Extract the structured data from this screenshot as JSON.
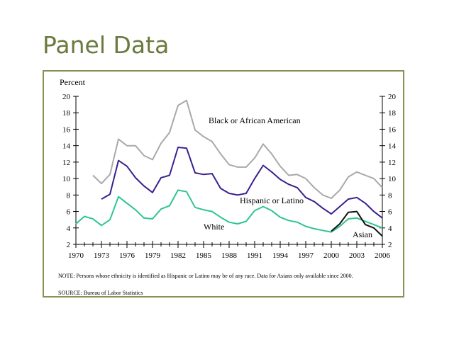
{
  "slide": {
    "title": "Panel Data"
  },
  "chart_data": {
    "type": "line",
    "ylabel": "Percent",
    "xlabel": "",
    "ylim": [
      2,
      20
    ],
    "xlim": [
      1970,
      2006
    ],
    "yticks": [
      2,
      4,
      6,
      8,
      10,
      12,
      14,
      16,
      18,
      20
    ],
    "xticks": [
      1970,
      1973,
      1976,
      1979,
      1982,
      1985,
      1988,
      1991,
      1994,
      1997,
      2000,
      2003,
      2006
    ],
    "grid": false,
    "series": [
      {
        "name": "Black or African American",
        "color": "#a9a9a9",
        "x": [
          1972,
          1973,
          1974,
          1975,
          1976,
          1977,
          1978,
          1979,
          1980,
          1981,
          1982,
          1983,
          1984,
          1985,
          1986,
          1987,
          1988,
          1989,
          1990,
          1991,
          1992,
          1993,
          1994,
          1995,
          1996,
          1997,
          1998,
          1999,
          2000,
          2001,
          2002,
          2003,
          2004,
          2005,
          2006
        ],
        "values": [
          10.4,
          9.4,
          10.5,
          14.8,
          14.0,
          14.0,
          12.8,
          12.3,
          14.3,
          15.6,
          18.9,
          19.5,
          15.9,
          15.1,
          14.5,
          13.0,
          11.7,
          11.4,
          11.4,
          12.5,
          14.2,
          13.0,
          11.5,
          10.4,
          10.5,
          10.0,
          8.9,
          8.0,
          7.6,
          8.6,
          10.2,
          10.8,
          10.4,
          10.0,
          8.9
        ]
      },
      {
        "name": "Hispanic or Latino",
        "color": "#3b1f8f",
        "x": [
          1973,
          1974,
          1975,
          1976,
          1977,
          1978,
          1979,
          1980,
          1981,
          1982,
          1983,
          1984,
          1985,
          1986,
          1987,
          1988,
          1989,
          1990,
          1991,
          1992,
          1993,
          1994,
          1995,
          1996,
          1997,
          1998,
          1999,
          2000,
          2001,
          2002,
          2003,
          2004,
          2005,
          2006
        ],
        "values": [
          7.5,
          8.1,
          12.2,
          11.5,
          10.1,
          9.1,
          8.3,
          10.1,
          10.4,
          13.8,
          13.7,
          10.7,
          10.5,
          10.6,
          8.8,
          8.2,
          8.0,
          8.2,
          10.0,
          11.6,
          10.8,
          9.9,
          9.3,
          8.9,
          7.7,
          7.2,
          6.4,
          5.7,
          6.6,
          7.5,
          7.7,
          7.0,
          6.0,
          5.2
        ]
      },
      {
        "name": "White",
        "color": "#2ec58f",
        "x": [
          1970,
          1971,
          1972,
          1973,
          1974,
          1975,
          1976,
          1977,
          1978,
          1979,
          1980,
          1981,
          1982,
          1983,
          1984,
          1985,
          1986,
          1987,
          1988,
          1989,
          1990,
          1991,
          1992,
          1993,
          1994,
          1995,
          1996,
          1997,
          1998,
          1999,
          2000,
          2001,
          2002,
          2003,
          2004,
          2005,
          2006
        ],
        "values": [
          4.5,
          5.4,
          5.1,
          4.3,
          5.0,
          7.8,
          7.0,
          6.2,
          5.2,
          5.1,
          6.3,
          6.7,
          8.6,
          8.4,
          6.5,
          6.2,
          6.0,
          5.3,
          4.7,
          4.5,
          4.8,
          6.1,
          6.6,
          6.1,
          5.3,
          4.9,
          4.7,
          4.2,
          3.9,
          3.7,
          3.5,
          4.2,
          5.1,
          5.2,
          4.8,
          4.4,
          4.0
        ]
      },
      {
        "name": "Asian",
        "color": "#111111",
        "x": [
          2000,
          2001,
          2002,
          2003,
          2004,
          2005,
          2006
        ],
        "values": [
          3.6,
          4.5,
          5.9,
          6.0,
          4.4,
          4.0,
          3.0
        ]
      }
    ],
    "note": "NOTE:  Persons whose ethnicity is identified as Hispanic or Latino may be of any race.  Data for Asians only available since 2000.",
    "source": "SOURCE:  Bureau of Labor Statistics"
  }
}
